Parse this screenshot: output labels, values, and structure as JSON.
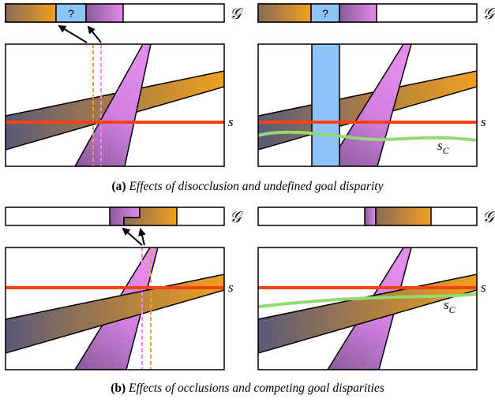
{
  "labels": {
    "goal_bar": "𝒢",
    "scanline": "s",
    "smooth_curve_base": "s",
    "smooth_curve_sub": "C",
    "unknown_mark": "?"
  },
  "captions": {
    "a": {
      "label": "(a)",
      "text": "Effects of disocclusion and undefined goal disparity"
    },
    "b": {
      "label": "(b)",
      "text": "Effects of occlusions and competing goal disparities"
    }
  },
  "colors": {
    "orange": "#f0a020",
    "slate": "#5a5a78",
    "violet": "#e08ce8",
    "violet_dark": "#8a4a9a",
    "blue": "#8ec4f8",
    "scanline": "#ff4010",
    "curve": "#94d870",
    "dashed_orange": "#f0a020",
    "dashed_pink": "#ff80f0"
  }
}
